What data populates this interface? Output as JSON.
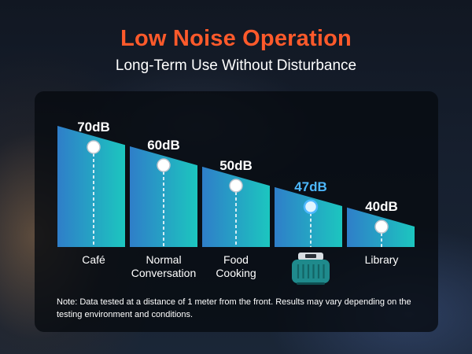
{
  "header": {
    "title": "Low Noise Operation",
    "subtitle": "Long-Term Use Without Disturbance"
  },
  "chart_data": {
    "type": "area",
    "title": "",
    "xlabel": "",
    "ylabel": "",
    "unit": "dB",
    "categories": [
      "Café",
      "Normal\nConversation",
      "Food\nCooking",
      "",
      "Library"
    ],
    "values": [
      70,
      60,
      50,
      47,
      40
    ],
    "value_labels": [
      "70dB",
      "60dB",
      "50dB",
      "47dB",
      "40dB"
    ],
    "highlight_index": 3,
    "highlight_icon": "device-icon",
    "colors": {
      "area_start": "#2f7ec9",
      "area_end": "#1cc6bf",
      "highlight_label": "#4db8ff",
      "label": "#ffffff"
    }
  },
  "footnote": "Note: Data tested at a distance of 1 meter from the front. Results may vary depending on the testing environment and conditions."
}
